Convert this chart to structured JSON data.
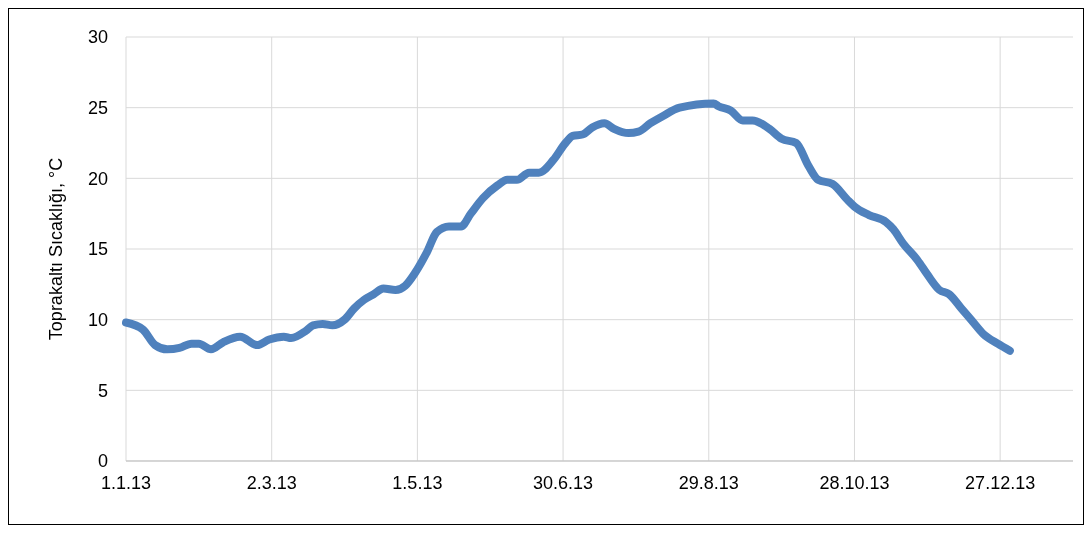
{
  "chart_data": {
    "type": "line",
    "ylabel": "Toprakaltı Sıcaklığı, °C",
    "xlim": [
      "2013-01-01",
      "2014-01-26"
    ],
    "ylim": [
      0,
      30
    ],
    "yticks": [
      0,
      5,
      10,
      15,
      20,
      25,
      30
    ],
    "xticks": [
      {
        "value": "2013-01-01",
        "label": "1.1.13"
      },
      {
        "value": "2013-03-02",
        "label": "2.3.13"
      },
      {
        "value": "2013-05-01",
        "label": "1.5.13"
      },
      {
        "value": "2013-06-30",
        "label": "30.6.13"
      },
      {
        "value": "2013-08-29",
        "label": "29.8.13"
      },
      {
        "value": "2013-10-28",
        "label": "28.10.13"
      },
      {
        "value": "2013-12-27",
        "label": "27.12.13"
      }
    ],
    "grid": true,
    "line_style": "solid",
    "marker": "none",
    "x": [
      "2013-01-01",
      "2013-01-08",
      "2013-01-13",
      "2013-01-18",
      "2013-01-23",
      "2013-01-28",
      "2013-01-31",
      "2013-02-05",
      "2013-02-10",
      "2013-02-17",
      "2013-02-24",
      "2013-03-01",
      "2013-03-07",
      "2013-03-10",
      "2013-03-16",
      "2013-03-19",
      "2013-03-23",
      "2013-03-27",
      "2013-04-01",
      "2013-04-05",
      "2013-04-09",
      "2013-04-13",
      "2013-04-17",
      "2013-04-22",
      "2013-04-26",
      "2013-04-30",
      "2013-05-05",
      "2013-05-09",
      "2013-05-14",
      "2013-05-19",
      "2013-05-23",
      "2013-05-28",
      "2013-06-03",
      "2013-06-07",
      "2013-06-11",
      "2013-06-16",
      "2013-06-20",
      "2013-06-26",
      "2013-07-01",
      "2013-07-04",
      "2013-07-08",
      "2013-07-12",
      "2013-07-17",
      "2013-07-21",
      "2013-07-27",
      "2013-07-31",
      "2013-08-05",
      "2013-08-10",
      "2013-08-17",
      "2013-08-31",
      "2013-09-02",
      "2013-09-07",
      "2013-09-12",
      "2013-09-16",
      "2013-09-23",
      "2013-09-28",
      "2013-10-04",
      "2013-10-09",
      "2013-10-13",
      "2013-10-19",
      "2013-10-25",
      "2013-10-28",
      "2013-11-03",
      "2013-11-10",
      "2013-11-13",
      "2013-11-17",
      "2013-11-23",
      "2013-11-27",
      "2013-12-02",
      "2013-12-06",
      "2013-12-11",
      "2013-12-15",
      "2013-12-20",
      "2013-12-26",
      "2013-12-31"
    ],
    "series": [
      {
        "color": "#4f81bd",
        "values": [
          9.8,
          9.3,
          8.2,
          7.9,
          8.0,
          8.3,
          8.3,
          7.9,
          8.4,
          8.8,
          8.2,
          8.6,
          8.8,
          8.7,
          9.2,
          9.6,
          9.7,
          9.6,
          10.0,
          10.8,
          11.4,
          11.8,
          12.2,
          12.1,
          12.4,
          13.3,
          14.8,
          16.2,
          16.6,
          16.6,
          17.5,
          18.6,
          19.5,
          19.9,
          19.9,
          20.4,
          20.4,
          21.3,
          22.5,
          23.0,
          23.1,
          23.6,
          23.9,
          23.5,
          23.2,
          23.3,
          23.9,
          24.4,
          25.0,
          25.3,
          25.1,
          24.8,
          24.1,
          24.1,
          23.5,
          22.8,
          22.5,
          20.9,
          19.9,
          19.6,
          18.5,
          18.0,
          17.4,
          16.9,
          16.4,
          15.4,
          14.2,
          13.2,
          12.1,
          11.8,
          10.8,
          10.0,
          9.0,
          8.3,
          7.8
        ]
      }
    ]
  }
}
